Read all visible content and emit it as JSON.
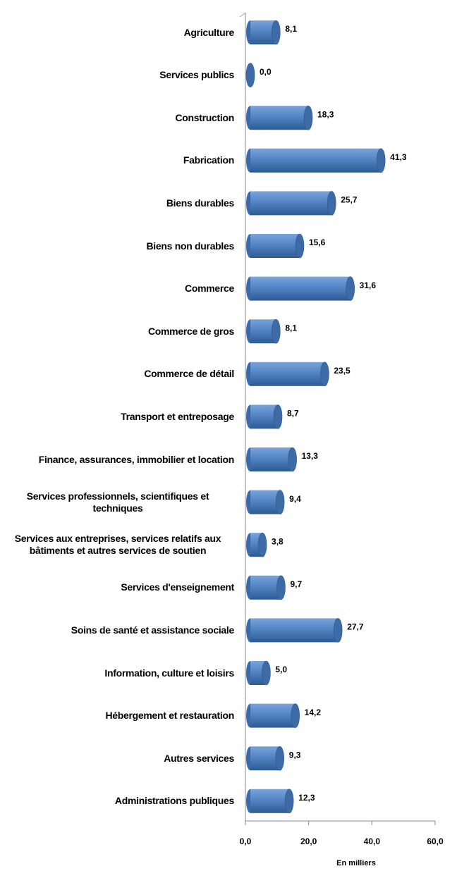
{
  "chart_data": {
    "type": "bar",
    "orientation": "horizontal",
    "categories": [
      "Agriculture",
      "Services publics",
      "Construction",
      "Fabrication",
      "Biens durables",
      "Biens non durables",
      "Commerce",
      "Commerce de gros",
      "Commerce de détail",
      "Transport et entreposage",
      "Finance, assurances, immobilier et location",
      "Services professionnels, scientifiques et techniques",
      "Services aux entreprises, services relatifs aux bâtiments et autres services de soutien",
      "Services d'enseignement",
      "Soins de santé et assistance sociale",
      "Information, culture et loisirs",
      "Hébergement et restauration",
      "Autres services",
      "Administrations publiques"
    ],
    "values": [
      8.1,
      0.0,
      18.3,
      41.3,
      25.7,
      15.6,
      31.6,
      8.1,
      23.5,
      8.7,
      13.3,
      9.4,
      3.8,
      9.7,
      27.7,
      5.0,
      14.2,
      9.3,
      12.3
    ],
    "value_labels": [
      "8,1",
      "0,0",
      "18,3",
      "41,3",
      "25,7",
      "15,6",
      "31,6",
      "8,1",
      "23,5",
      "8,7",
      "13,3",
      "9,4",
      "3,8",
      "9,7",
      "27,7",
      "5,0",
      "14,2",
      "9,3",
      "12,3"
    ],
    "color": "#4f81bd",
    "xlim": [
      0,
      60
    ],
    "xticks": [
      {
        "value": 0,
        "label": "0,0"
      },
      {
        "value": 20,
        "label": "20,0"
      },
      {
        "value": 40,
        "label": "40,0"
      },
      {
        "value": 60,
        "label": "60,0"
      }
    ],
    "x_label": "En milliers"
  }
}
